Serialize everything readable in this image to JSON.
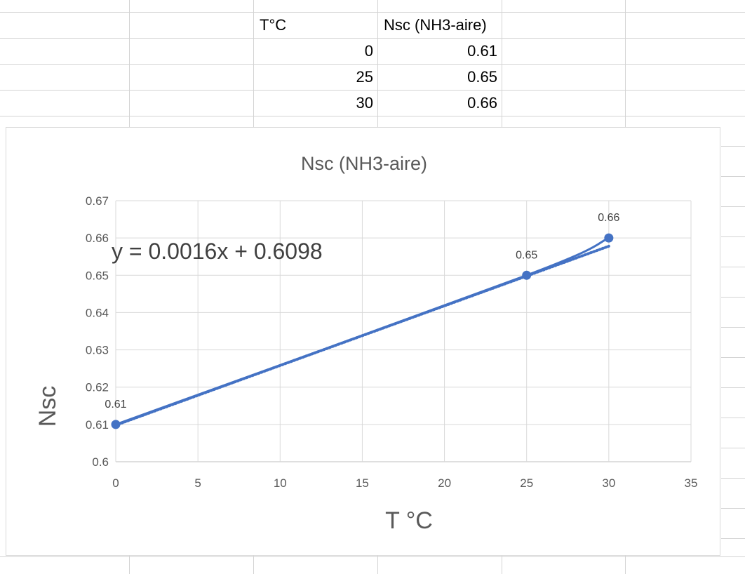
{
  "table": {
    "headers": [
      "T°C",
      "Nsc (NH3-aire)"
    ],
    "rows": [
      [
        "0",
        "0.61"
      ],
      [
        "25",
        "0.65"
      ],
      [
        "30",
        "0.66"
      ]
    ]
  },
  "colors": {
    "series": "#4472C4",
    "gridline": "#d9d9d9",
    "text": "#595959"
  },
  "chart_data": {
    "type": "scatter",
    "title": "Nsc (NH3-aire)",
    "xlabel": "T °C",
    "ylabel": "Nsc",
    "xlim": [
      0,
      35
    ],
    "ylim": [
      0.6,
      0.67
    ],
    "xticks": [
      "0",
      "5",
      "10",
      "15",
      "20",
      "25",
      "30",
      "35"
    ],
    "yticks": [
      "0.6",
      "0.61",
      "0.62",
      "0.63",
      "0.64",
      "0.65",
      "0.66",
      "0.67"
    ],
    "grid": true,
    "series": [
      {
        "x": [
          0,
          25,
          30
        ],
        "y": [
          0.61,
          0.65,
          0.66
        ],
        "data_labels": [
          "0.61",
          "0.65",
          "0.66"
        ],
        "line": "smooth",
        "markers": true
      }
    ],
    "trendline": {
      "kind": "linear",
      "style": "dotted",
      "slope": 0.0016,
      "intercept": 0.6098,
      "equation": "y = 0.0016x + 0.6098"
    }
  }
}
